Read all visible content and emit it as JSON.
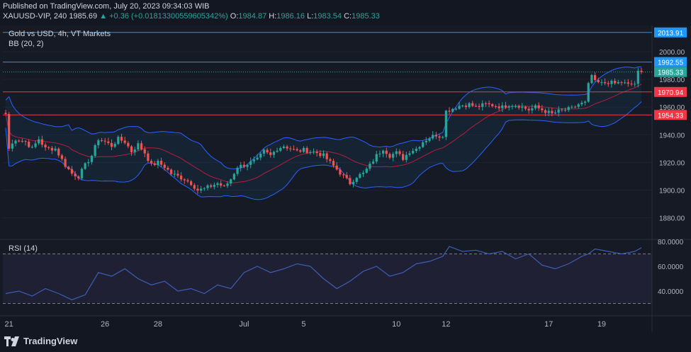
{
  "header": {
    "published": "Published on TradingView.com, July 20, 2023 09:34:03 WIB",
    "symbol": "XAUUSD-VIP, 240",
    "last": "1985.69",
    "change": "▲ +0.36 (+0.01813300559605342%)",
    "open_label": "O:",
    "open": "1984.87",
    "high_label": "H:",
    "high": "1986.16",
    "low_label": "L:",
    "low": "1983.54",
    "close_label": "C:",
    "close": "1985.33"
  },
  "legend": {
    "title": "Gold vs USD, 4h, VT Markets",
    "bb": "BB (20, 2)",
    "rsi": "RSI (14)"
  },
  "footer": {
    "brand": "TradingView"
  },
  "colors": {
    "background": "#161a25",
    "up": "#26a69a",
    "down": "#ef5350",
    "bb_band": "#2962ff",
    "bb_basis": "#b71c3c",
    "rsi_line": "#3c5fb4",
    "hline_red": "#f23645",
    "hline_blue": "#2196f3"
  },
  "chart_data": [
    {
      "type": "candlestick",
      "title": "Gold vs USD, 4h, VT Markets",
      "ylim": [
        1872,
        2018
      ],
      "y_ticks": [
        "2000.00",
        "1980.00",
        "1960.00",
        "1940.00",
        "1920.00",
        "1900.00",
        "1880.00"
      ],
      "x_ticks": [
        "21",
        "26",
        "28",
        "Jul",
        "5",
        "10",
        "12",
        "17",
        "19"
      ],
      "x_tick_index": [
        1,
        30,
        46,
        72,
        90,
        118,
        133,
        164,
        180
      ],
      "price_labels": [
        {
          "label": "2013.91",
          "value": 2013.91,
          "kind": "blue"
        },
        {
          "label": "1992.55",
          "value": 1992.55,
          "kind": "blue"
        },
        {
          "label": "1985.33",
          "value": 1985.33,
          "kind": "current"
        },
        {
          "label": "1970.94",
          "value": 1970.94,
          "kind": "red"
        },
        {
          "label": "1954.33",
          "value": 1954.33,
          "kind": "red"
        }
      ],
      "horizontal_lines": [
        {
          "value": 2013.91,
          "kind": "blue"
        },
        {
          "value": 1992.55,
          "kind": "blue"
        },
        {
          "value": 1970.94,
          "kind": "red"
        },
        {
          "value": 1954.33,
          "kind": "red"
        }
      ],
      "close_series_anchors": [
        [
          0,
          1955
        ],
        [
          1,
          1930
        ],
        [
          3,
          1937
        ],
        [
          6,
          1935
        ],
        [
          8,
          1930
        ],
        [
          10,
          1937
        ],
        [
          12,
          1930
        ],
        [
          15,
          1930
        ],
        [
          18,
          1918
        ],
        [
          20,
          1912
        ],
        [
          22,
          1910
        ],
        [
          24,
          1918
        ],
        [
          26,
          1925
        ],
        [
          28,
          1937
        ],
        [
          30,
          1935
        ],
        [
          32,
          1932
        ],
        [
          34,
          1937
        ],
        [
          36,
          1935
        ],
        [
          38,
          1928
        ],
        [
          40,
          1933
        ],
        [
          42,
          1927
        ],
        [
          44,
          1918
        ],
        [
          46,
          1920
        ],
        [
          48,
          1917
        ],
        [
          50,
          1912
        ],
        [
          52,
          1910
        ],
        [
          54,
          1908
        ],
        [
          56,
          1905
        ],
        [
          58,
          1900
        ],
        [
          60,
          1901
        ],
        [
          62,
          1903
        ],
        [
          64,
          1905
        ],
        [
          66,
          1902
        ],
        [
          68,
          1908
        ],
        [
          70,
          1917
        ],
        [
          72,
          1918
        ],
        [
          74,
          1920
        ],
        [
          76,
          1922
        ],
        [
          78,
          1928
        ],
        [
          80,
          1925
        ],
        [
          82,
          1930
        ],
        [
          84,
          1932
        ],
        [
          86,
          1930
        ],
        [
          88,
          1928
        ],
        [
          90,
          1929
        ],
        [
          92,
          1928
        ],
        [
          94,
          1927
        ],
        [
          96,
          1925
        ],
        [
          98,
          1920
        ],
        [
          100,
          1915
        ],
        [
          102,
          1910
        ],
        [
          104,
          1905
        ],
        [
          106,
          1910
        ],
        [
          108,
          1912
        ],
        [
          110,
          1918
        ],
        [
          112,
          1925
        ],
        [
          114,
          1930
        ],
        [
          116,
          1925
        ],
        [
          118,
          1927
        ],
        [
          120,
          1923
        ],
        [
          122,
          1928
        ],
        [
          124,
          1930
        ],
        [
          126,
          1935
        ],
        [
          128,
          1938
        ],
        [
          130,
          1940
        ],
        [
          131,
          1939
        ],
        [
          132,
          1940
        ],
        [
          133,
          1957
        ],
        [
          135,
          1959
        ],
        [
          137,
          1961
        ],
        [
          140,
          1962
        ],
        [
          142,
          1960
        ],
        [
          145,
          1962
        ],
        [
          148,
          1961
        ],
        [
          150,
          1960
        ],
        [
          152,
          1962
        ],
        [
          155,
          1961
        ],
        [
          158,
          1958
        ],
        [
          160,
          1960
        ],
        [
          163,
          1957
        ],
        [
          165,
          1955
        ],
        [
          167,
          1957
        ],
        [
          169,
          1958
        ],
        [
          171,
          1959
        ],
        [
          173,
          1962
        ],
        [
          175,
          1963
        ],
        [
          176,
          1976
        ],
        [
          177,
          1983
        ],
        [
          178,
          1978
        ],
        [
          180,
          1977
        ],
        [
          182,
          1978
        ],
        [
          184,
          1977
        ],
        [
          186,
          1978
        ],
        [
          188,
          1976
        ],
        [
          190,
          1977
        ],
        [
          191,
          1985
        ],
        [
          192,
          1985.33
        ]
      ],
      "bands_note": "Bollinger Bands (20, 2) drawn around the price series"
    },
    {
      "type": "line",
      "title": "RSI (14)",
      "ylim": [
        28,
        82
      ],
      "y_ticks": [
        "80.0000",
        "60.0000",
        "40.0000"
      ],
      "levels": [
        70,
        30
      ],
      "series": [
        {
          "name": "RSI (14)",
          "x": [
            0,
            4,
            8,
            12,
            16,
            20,
            24,
            28,
            32,
            36,
            40,
            44,
            48,
            52,
            56,
            60,
            64,
            68,
            72,
            76,
            80,
            84,
            88,
            92,
            96,
            100,
            104,
            108,
            112,
            116,
            120,
            124,
            128,
            132,
            134,
            138,
            142,
            146,
            150,
            154,
            158,
            162,
            166,
            170,
            174,
            176,
            178,
            182,
            186,
            190,
            192
          ],
          "values": [
            38,
            40,
            36,
            42,
            38,
            33,
            37,
            55,
            52,
            58,
            50,
            45,
            48,
            40,
            42,
            38,
            45,
            42,
            55,
            60,
            55,
            58,
            62,
            60,
            50,
            42,
            48,
            56,
            60,
            52,
            55,
            62,
            64,
            68,
            76,
            72,
            73,
            70,
            72,
            66,
            70,
            61,
            58,
            62,
            68,
            70,
            74,
            72,
            70,
            72,
            75
          ]
        }
      ]
    }
  ]
}
